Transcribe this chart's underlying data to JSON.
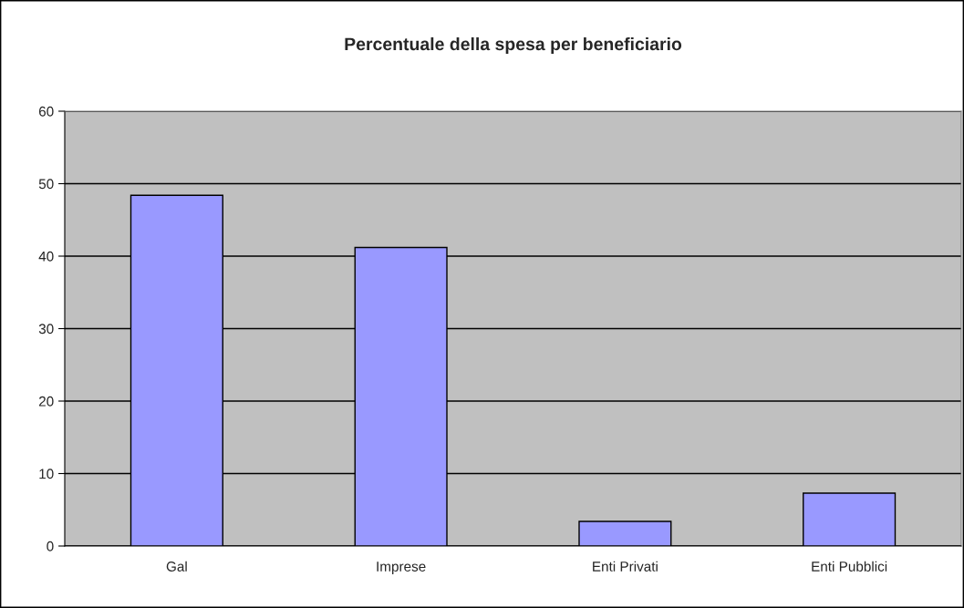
{
  "chart_data": {
    "type": "bar",
    "title": "Percentuale della spesa per beneficiario",
    "categories": [
      "Gal",
      "Imprese",
      "Enti Privati",
      "Enti Pubblici"
    ],
    "values": [
      48.4,
      41.2,
      3.4,
      7.3
    ],
    "color": "#9999ff",
    "ylim": [
      0,
      60
    ],
    "yticks": [
      0,
      10,
      20,
      30,
      40,
      50,
      60
    ],
    "grid": "y"
  }
}
